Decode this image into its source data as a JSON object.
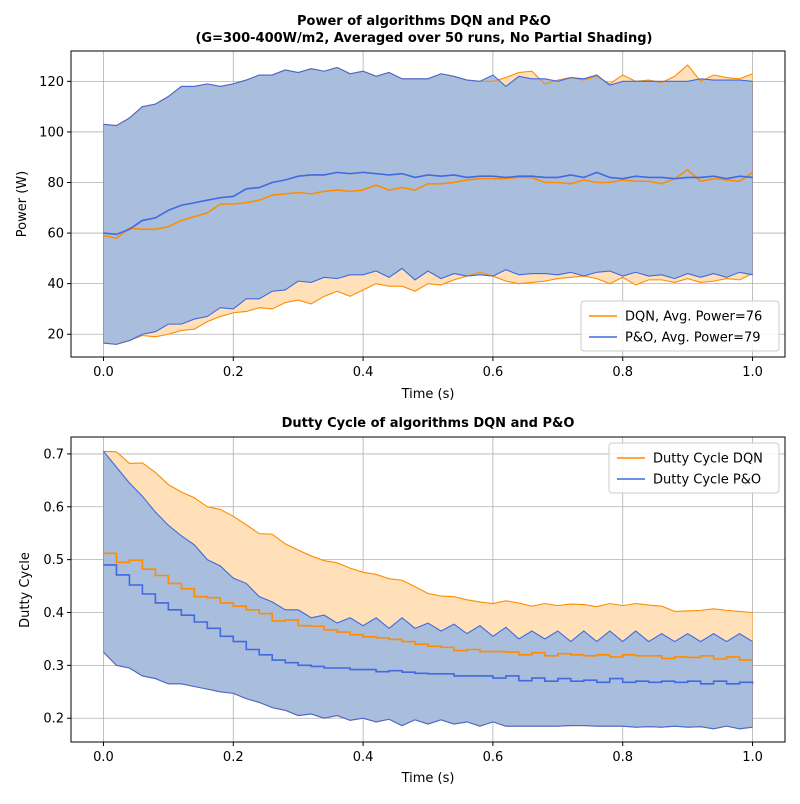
{
  "colors": {
    "dqn": "#ff8c00",
    "dqn_fill": "#ffe0b8",
    "po": "#4169e1",
    "po_fill": "#a9bedc"
  },
  "chart_data": [
    {
      "type": "line",
      "title_line1": "Power of algorithms DQN and P&O",
      "title_line2": "(G=300-400W/m2, Averaged over 50 runs, No Partial Shading)",
      "xlabel": "Time (s)",
      "ylabel": "Power (W)",
      "xlim": [
        -0.05,
        1.05
      ],
      "ylim": [
        11,
        132
      ],
      "xticks": [
        0.0,
        0.2,
        0.4,
        0.6,
        0.8,
        1.0
      ],
      "xtick_labels": [
        "0.0",
        "0.2",
        "0.4",
        "0.6",
        "0.8",
        "1.0"
      ],
      "yticks": [
        20,
        40,
        60,
        80,
        100,
        120
      ],
      "ytick_labels": [
        "20",
        "40",
        "60",
        "80",
        "100",
        "120"
      ],
      "grid": true,
      "legend_position": "lower-right",
      "x": [
        0.0,
        0.02,
        0.04,
        0.06,
        0.08,
        0.1,
        0.12,
        0.14,
        0.16,
        0.18,
        0.2,
        0.22,
        0.24,
        0.26,
        0.28,
        0.3,
        0.32,
        0.34,
        0.36,
        0.38,
        0.4,
        0.42,
        0.44,
        0.46,
        0.48,
        0.5,
        0.52,
        0.54,
        0.56,
        0.58,
        0.6,
        0.62,
        0.64,
        0.66,
        0.68,
        0.7,
        0.72,
        0.74,
        0.76,
        0.78,
        0.8,
        0.82,
        0.84,
        0.86,
        0.88,
        0.9,
        0.92,
        0.94,
        0.96,
        0.98,
        1.0
      ],
      "series": [
        {
          "name": "DQN, Avg. Power=76",
          "color": "#ff8c00",
          "mean": [
            59,
            58,
            62,
            61.5,
            61.5,
            62.5,
            65,
            66.5,
            68,
            71.5,
            71.5,
            72,
            73,
            75,
            75.5,
            76,
            75.5,
            76.5,
            77,
            76.5,
            77,
            79,
            77,
            78,
            77,
            79.5,
            79.5,
            80,
            81,
            81.5,
            81.5,
            81.5,
            82,
            82,
            80,
            80,
            79.5,
            81,
            80,
            80,
            81,
            80.5,
            80.5,
            79.5,
            81.5,
            85,
            80.5,
            81.5,
            81,
            80.5,
            84
          ],
          "upper": [
            103,
            102.5,
            105.5,
            110,
            111,
            114,
            118,
            118,
            119,
            118,
            119,
            120.5,
            122.5,
            122.5,
            124.5,
            123.5,
            125,
            124,
            125.5,
            123,
            124,
            122,
            123.5,
            121,
            121,
            121,
            123,
            122,
            120.5,
            120,
            120,
            121.5,
            123.5,
            124,
            119,
            120.5,
            121.5,
            120.5,
            122,
            119,
            122.5,
            120,
            120.5,
            119.5,
            122,
            126.5,
            120,
            122.5,
            121.5,
            121,
            123
          ],
          "lower": [
            16.5,
            16,
            17.5,
            19.5,
            19,
            20,
            21.5,
            22,
            25,
            27,
            28.5,
            29,
            30.5,
            30,
            32.5,
            33.5,
            32,
            35,
            37,
            35,
            37.5,
            40,
            39,
            39,
            37,
            40,
            39.5,
            41.5,
            43,
            44.5,
            43,
            41,
            40,
            40.5,
            41,
            42,
            42.5,
            43,
            42,
            40,
            42.5,
            39.5,
            41.5,
            41.5,
            40.5,
            42,
            40.5,
            41,
            42,
            41.5,
            44
          ]
        },
        {
          "name": "P&O, Avg. Power=79",
          "color": "#4169e1",
          "mean": [
            60,
            59.5,
            61.5,
            65,
            66,
            69,
            71,
            72,
            73,
            74,
            74.5,
            77.5,
            78,
            80,
            81,
            82.5,
            83,
            83,
            84,
            83.5,
            84,
            83.5,
            83,
            83.5,
            82,
            83,
            82.5,
            83,
            82,
            82.5,
            82.5,
            82,
            82.5,
            82.5,
            82,
            82,
            83,
            82,
            84,
            82,
            81.5,
            82.5,
            82,
            82,
            81.5,
            82,
            82,
            82.5,
            81.5,
            82.5,
            82
          ],
          "upper": [
            103,
            102.5,
            105.5,
            110,
            111,
            114,
            118,
            118,
            119,
            118,
            119,
            120.5,
            122.5,
            122.5,
            124.5,
            123.5,
            125,
            124,
            125.5,
            123,
            124,
            122,
            123.5,
            121,
            121,
            121,
            123,
            122,
            120.5,
            120,
            122.5,
            118,
            122,
            121,
            121,
            120,
            121.5,
            121,
            122.5,
            118.5,
            120,
            120,
            120,
            120,
            120,
            120,
            121,
            120.5,
            120.5,
            120.5,
            120
          ],
          "lower": [
            16.5,
            16,
            17.5,
            20,
            21,
            24,
            24,
            26,
            27,
            30.5,
            30,
            34,
            34,
            37,
            37.5,
            41,
            40.5,
            42.5,
            42,
            43.5,
            43.5,
            45,
            42.5,
            46,
            41.5,
            45,
            42,
            44,
            43,
            43.5,
            43,
            45.5,
            43.5,
            44,
            44,
            43.5,
            44.5,
            43,
            44.5,
            45,
            43,
            44.5,
            43,
            43.5,
            42,
            44,
            42.5,
            44,
            42.5,
            44.5,
            43.5
          ]
        }
      ]
    },
    {
      "type": "line",
      "title": "Dutty Cycle of algorithms DQN and P&O",
      "xlabel": "Time (s)",
      "ylabel": "Dutty Cycle",
      "xlim": [
        -0.05,
        1.05
      ],
      "ylim": [
        0.155,
        0.732
      ],
      "xticks": [
        0.0,
        0.2,
        0.4,
        0.6,
        0.8,
        1.0
      ],
      "xtick_labels": [
        "0.0",
        "0.2",
        "0.4",
        "0.6",
        "0.8",
        "1.0"
      ],
      "yticks": [
        0.2,
        0.3,
        0.4,
        0.5,
        0.6,
        0.7
      ],
      "ytick_labels": [
        "0.2",
        "0.3",
        "0.4",
        "0.5",
        "0.6",
        "0.7"
      ],
      "grid": true,
      "legend_position": "top-right",
      "x": [
        0.0,
        0.02,
        0.04,
        0.06,
        0.08,
        0.1,
        0.12,
        0.14,
        0.16,
        0.18,
        0.2,
        0.22,
        0.24,
        0.26,
        0.28,
        0.3,
        0.32,
        0.34,
        0.36,
        0.38,
        0.4,
        0.42,
        0.44,
        0.46,
        0.48,
        0.5,
        0.52,
        0.54,
        0.56,
        0.58,
        0.6,
        0.62,
        0.64,
        0.66,
        0.68,
        0.7,
        0.72,
        0.74,
        0.76,
        0.78,
        0.8,
        0.82,
        0.84,
        0.86,
        0.88,
        0.9,
        0.92,
        0.94,
        0.96,
        0.98,
        1.0
      ],
      "series": [
        {
          "name": "Dutty Cycle DQN",
          "color": "#ff8c00",
          "mean": [
            0.512,
            0.495,
            0.499,
            0.482,
            0.47,
            0.455,
            0.445,
            0.43,
            0.428,
            0.418,
            0.412,
            0.405,
            0.398,
            0.384,
            0.386,
            0.375,
            0.374,
            0.367,
            0.363,
            0.358,
            0.354,
            0.352,
            0.349,
            0.345,
            0.34,
            0.336,
            0.334,
            0.328,
            0.33,
            0.326,
            0.326,
            0.325,
            0.32,
            0.324,
            0.318,
            0.322,
            0.32,
            0.318,
            0.32,
            0.316,
            0.32,
            0.318,
            0.318,
            0.313,
            0.316,
            0.315,
            0.318,
            0.312,
            0.316,
            0.31,
            0.31
          ],
          "upper": [
            0.705,
            0.704,
            0.682,
            0.683,
            0.665,
            0.642,
            0.628,
            0.617,
            0.6,
            0.595,
            0.582,
            0.566,
            0.549,
            0.548,
            0.53,
            0.518,
            0.507,
            0.498,
            0.494,
            0.484,
            0.476,
            0.472,
            0.464,
            0.461,
            0.449,
            0.436,
            0.431,
            0.43,
            0.424,
            0.42,
            0.417,
            0.422,
            0.418,
            0.412,
            0.417,
            0.413,
            0.416,
            0.415,
            0.411,
            0.417,
            0.413,
            0.417,
            0.414,
            0.412,
            0.402,
            0.403,
            0.404,
            0.407,
            0.404,
            0.402,
            0.4
          ],
          "lower": [
            0.325,
            0.3,
            0.295,
            0.28,
            0.275,
            0.265,
            0.265,
            0.26,
            0.255,
            0.25,
            0.247,
            0.237,
            0.23,
            0.22,
            0.215,
            0.205,
            0.208,
            0.2,
            0.205,
            0.196,
            0.2,
            0.193,
            0.198,
            0.186,
            0.197,
            0.189,
            0.197,
            0.189,
            0.193,
            0.185,
            0.193,
            0.185,
            0.185,
            0.185,
            0.185,
            0.185,
            0.186,
            0.186,
            0.185,
            0.185,
            0.185,
            0.183,
            0.184,
            0.183,
            0.185,
            0.183,
            0.184,
            0.18,
            0.185,
            0.18,
            0.183
          ]
        },
        {
          "name": "Dutty Cycle P&O",
          "color": "#4169e1",
          "mean": [
            0.49,
            0.471,
            0.452,
            0.435,
            0.418,
            0.405,
            0.395,
            0.382,
            0.37,
            0.355,
            0.345,
            0.33,
            0.32,
            0.31,
            0.305,
            0.3,
            0.298,
            0.295,
            0.295,
            0.292,
            0.292,
            0.288,
            0.29,
            0.287,
            0.285,
            0.284,
            0.284,
            0.28,
            0.28,
            0.28,
            0.276,
            0.28,
            0.271,
            0.276,
            0.27,
            0.275,
            0.27,
            0.272,
            0.268,
            0.275,
            0.268,
            0.27,
            0.268,
            0.27,
            0.268,
            0.27,
            0.265,
            0.27,
            0.265,
            0.268,
            0.265
          ],
          "upper": [
            0.705,
            0.675,
            0.645,
            0.62,
            0.59,
            0.565,
            0.545,
            0.528,
            0.5,
            0.488,
            0.465,
            0.455,
            0.43,
            0.42,
            0.405,
            0.405,
            0.39,
            0.395,
            0.38,
            0.39,
            0.375,
            0.39,
            0.37,
            0.39,
            0.37,
            0.38,
            0.365,
            0.378,
            0.36,
            0.375,
            0.355,
            0.372,
            0.35,
            0.365,
            0.35,
            0.365,
            0.345,
            0.365,
            0.345,
            0.365,
            0.345,
            0.365,
            0.345,
            0.36,
            0.345,
            0.36,
            0.345,
            0.36,
            0.345,
            0.36,
            0.345
          ],
          "lower": [
            0.325,
            0.3,
            0.295,
            0.28,
            0.275,
            0.265,
            0.265,
            0.26,
            0.255,
            0.25,
            0.247,
            0.237,
            0.23,
            0.22,
            0.215,
            0.205,
            0.208,
            0.2,
            0.205,
            0.196,
            0.2,
            0.193,
            0.198,
            0.186,
            0.197,
            0.189,
            0.197,
            0.189,
            0.193,
            0.185,
            0.193,
            0.185,
            0.185,
            0.185,
            0.185,
            0.185,
            0.186,
            0.186,
            0.185,
            0.185,
            0.185,
            0.183,
            0.184,
            0.183,
            0.185,
            0.183,
            0.184,
            0.18,
            0.185,
            0.18,
            0.183
          ]
        }
      ]
    }
  ]
}
